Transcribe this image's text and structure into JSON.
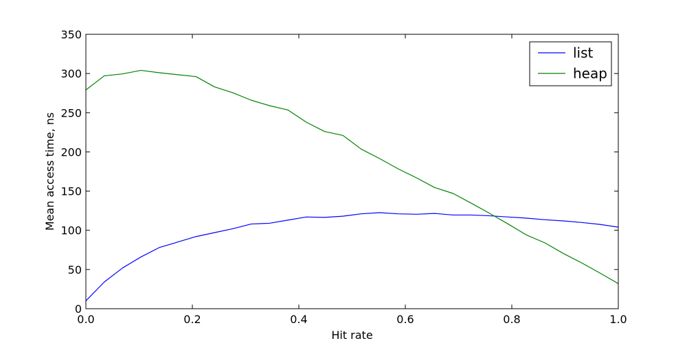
{
  "chart_data": {
    "type": "line",
    "title": "",
    "xlabel": "Hit rate",
    "ylabel": "Mean access time, ns",
    "xlim": [
      0.0,
      1.0
    ],
    "ylim": [
      0,
      350
    ],
    "xticks": [
      "0.0",
      "0.2",
      "0.4",
      "0.6",
      "0.8",
      "1.0"
    ],
    "yticks": [
      "0",
      "50",
      "100",
      "150",
      "200",
      "250",
      "300",
      "350"
    ],
    "grid": false,
    "legend_position": "top-right",
    "x": [
      0.0,
      0.0345,
      0.069,
      0.1034,
      0.1379,
      0.1724,
      0.2069,
      0.2414,
      0.2759,
      0.3103,
      0.3448,
      0.3793,
      0.4138,
      0.4483,
      0.4828,
      0.5172,
      0.5517,
      0.5862,
      0.6207,
      0.6552,
      0.6897,
      0.7241,
      0.7586,
      0.7931,
      0.8276,
      0.8621,
      0.8966,
      0.931,
      0.9655,
      1.0
    ],
    "series": [
      {
        "name": "list",
        "color": "#0000ff",
        "values": [
          10,
          34,
          52,
          66,
          78,
          85,
          92,
          97,
          102,
          108,
          109,
          113,
          117,
          116.5,
          118,
          121,
          122.5,
          121,
          120.5,
          121.5,
          119.5,
          119.5,
          118.5,
          117,
          115.5,
          113.5,
          112,
          110,
          107.5,
          104
        ]
      },
      {
        "name": "heap",
        "color": "#008000",
        "values": [
          279,
          297,
          299.5,
          304,
          301,
          298.5,
          296,
          283,
          275.5,
          266,
          259,
          253.5,
          238,
          226,
          221,
          203.5,
          191.5,
          178.5,
          167,
          154.5,
          147,
          134.5,
          121.5,
          108,
          94,
          84,
          70.5,
          58.5,
          45.5,
          32
        ]
      }
    ]
  }
}
